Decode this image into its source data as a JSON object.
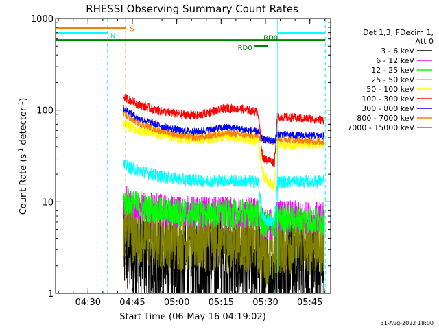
{
  "chart_data": {
    "type": "line",
    "title": "RHESSI Observing Summary Count Rates",
    "xlabel": "Start Time (06-May-16 04:19:02)",
    "ylabel_main": "Count Rate (s",
    "ylabel_sup1": "-1",
    "ylabel_mid": " detector",
    "ylabel_sup2": "-1",
    "ylabel_end": ")",
    "y_scale": "log",
    "ylim": [
      1,
      1000
    ],
    "xlim_minutes": [
      0,
      93
    ],
    "x_ticks": [
      {
        "label": "04:30",
        "min": 10.97
      },
      {
        "label": "04:45",
        "min": 25.97
      },
      {
        "label": "05:00",
        "min": 40.97
      },
      {
        "label": "05:15",
        "min": 55.97
      },
      {
        "label": "05:30",
        "min": 70.97
      },
      {
        "label": "05:45",
        "min": 85.97
      }
    ],
    "y_ticks": [
      {
        "label": "1",
        "value": 1
      },
      {
        "label": "10",
        "value": 10
      },
      {
        "label": "100",
        "value": 100
      },
      {
        "label": "1000",
        "value": 1000
      }
    ],
    "legend_header": [
      "Det 1,3, FDecim 1,",
      "Att 0"
    ],
    "legend_position": "right",
    "footer_date": "31-Aug-2022 18:00",
    "data_start_min": 22.9,
    "data_end_min": 90.9,
    "series": [
      {
        "name": "3 - 6 keV",
        "color": "#000000",
        "points": [
          [
            22.9,
            3.2
          ],
          [
            35,
            2.0
          ],
          [
            45,
            2.2
          ],
          [
            55,
            2.3
          ],
          [
            62,
            2.4
          ],
          [
            68.5,
            2.3
          ],
          [
            70,
            1.4
          ],
          [
            73,
            1.5
          ],
          [
            75,
            2.6
          ],
          [
            82,
            2.2
          ],
          [
            90.9,
            1.6
          ]
        ],
        "noise": 0.55
      },
      {
        "name": "6 - 12 keV",
        "color": "#ff00ff",
        "points": [
          [
            22.9,
            10.5
          ],
          [
            30,
            8.5
          ],
          [
            40,
            7.8
          ],
          [
            50,
            7.6
          ],
          [
            60,
            7.5
          ],
          [
            68.5,
            7.4
          ],
          [
            70,
            5.8
          ],
          [
            74,
            5.5
          ],
          [
            75,
            7.0
          ],
          [
            82,
            6.8
          ],
          [
            90.9,
            6.6
          ]
        ],
        "noise": 0.18
      },
      {
        "name": "12 - 25 keV",
        "color": "#00ff00",
        "points": [
          [
            22.9,
            10.2
          ],
          [
            30,
            8.5
          ],
          [
            40,
            7.6
          ],
          [
            50,
            7.4
          ],
          [
            60,
            7.3
          ],
          [
            68.5,
            7.2
          ],
          [
            70,
            5.8
          ],
          [
            74,
            5.5
          ],
          [
            75,
            6.6
          ],
          [
            82,
            6.4
          ],
          [
            90.9,
            6.2
          ]
        ],
        "noise": 0.16
      },
      {
        "name": "25 - 50 keV",
        "color": "#00ffff",
        "points": [
          [
            22.9,
            25
          ],
          [
            28,
            22
          ],
          [
            35,
            19
          ],
          [
            42,
            17.5
          ],
          [
            50,
            17
          ],
          [
            60,
            17
          ],
          [
            68.5,
            16.5
          ],
          [
            70,
            6.5
          ],
          [
            74,
            6.0
          ],
          [
            75,
            16.5
          ],
          [
            82,
            16.5
          ],
          [
            90.9,
            16.8
          ]
        ],
        "noise": 0.07
      },
      {
        "name": "50 - 100 keV",
        "color": "#ffff00",
        "points": [
          [
            22.9,
            70
          ],
          [
            28,
            60
          ],
          [
            35,
            55
          ],
          [
            42,
            50
          ],
          [
            50,
            48
          ],
          [
            57,
            52
          ],
          [
            63,
            50
          ],
          [
            68.5,
            47
          ],
          [
            70,
            20
          ],
          [
            74,
            14
          ],
          [
            75,
            42
          ],
          [
            82,
            42
          ],
          [
            90.9,
            42
          ]
        ],
        "noise": 0.06
      },
      {
        "name": "100 - 300 keV",
        "color": "#ff0000",
        "points": [
          [
            22.9,
            140
          ],
          [
            28,
            115
          ],
          [
            35,
            98
          ],
          [
            42,
            90
          ],
          [
            48,
            87
          ],
          [
            53,
            97
          ],
          [
            58,
            105
          ],
          [
            63,
            103
          ],
          [
            68.5,
            95
          ],
          [
            70,
            30
          ],
          [
            74,
            27
          ],
          [
            75,
            85
          ],
          [
            82,
            82
          ],
          [
            90.9,
            78
          ]
        ],
        "noise": 0.05
      },
      {
        "name": "300 - 800 keV",
        "color": "#0000ff",
        "points": [
          [
            22.9,
            105
          ],
          [
            28,
            82
          ],
          [
            35,
            68
          ],
          [
            42,
            60
          ],
          [
            48,
            58
          ],
          [
            53,
            62
          ],
          [
            58,
            65
          ],
          [
            63,
            62
          ],
          [
            68.5,
            58
          ],
          [
            70,
            48
          ],
          [
            74,
            46
          ],
          [
            75,
            55
          ],
          [
            82,
            53
          ],
          [
            90.9,
            52
          ]
        ],
        "noise": 0.04
      },
      {
        "name": "800 - 7000 keV",
        "color": "#ff8000",
        "points": [
          [
            22.9,
            90
          ],
          [
            28,
            72
          ],
          [
            35,
            60
          ],
          [
            42,
            53
          ],
          [
            48,
            50
          ],
          [
            53,
            53
          ],
          [
            58,
            56
          ],
          [
            63,
            54
          ],
          [
            68.5,
            52
          ],
          [
            70,
            48
          ],
          [
            74,
            46
          ],
          [
            75,
            49
          ],
          [
            82,
            47
          ],
          [
            90.9,
            45
          ]
        ],
        "noise": 0.04
      },
      {
        "name": "7000 - 15000 keV",
        "color": "#808000",
        "points": [
          [
            22.9,
            5.5
          ],
          [
            30,
            4.2
          ],
          [
            40,
            3.9
          ],
          [
            50,
            3.8
          ],
          [
            60,
            3.8
          ],
          [
            68.5,
            3.7
          ],
          [
            70,
            2.8
          ],
          [
            74,
            2.7
          ],
          [
            75,
            3.6
          ],
          [
            82,
            3.5
          ],
          [
            90.9,
            3.4
          ]
        ],
        "noise": 0.35
      }
    ],
    "annotations": {
      "vlines": [
        {
          "min": 0.05,
          "color": "#00ffff",
          "style": "solid"
        },
        {
          "min": 17.6,
          "color": "#00ffff",
          "style": "dashed"
        },
        {
          "min": 23.7,
          "color": "#ff8000",
          "style": "dashed"
        },
        {
          "min": 75.1,
          "color": "#00ffff",
          "style": "solid"
        },
        {
          "min": 91.2,
          "color": "#00ffff",
          "style": "dashed"
        }
      ],
      "bars": [
        {
          "label": "S",
          "color": "#ff8000",
          "x0": 0,
          "x1": 23.7,
          "y": 780
        },
        {
          "label": "N",
          "color": "#00ffff",
          "x0": 0,
          "x1": 17.6,
          "y": 690
        },
        {
          "label": "",
          "color": "#00ffff",
          "x0": 75.1,
          "x1": 91.2,
          "y": 690
        },
        {
          "label": "",
          "color": "#008000",
          "x0": 0,
          "x1": 91.2,
          "y": 580
        },
        {
          "label": "RD0",
          "color": "#008000",
          "x0": 67.3,
          "x1": 71.9,
          "y": 500
        }
      ],
      "rd0_label": "RD0",
      "s_label": "S",
      "n_label": "N"
    }
  }
}
